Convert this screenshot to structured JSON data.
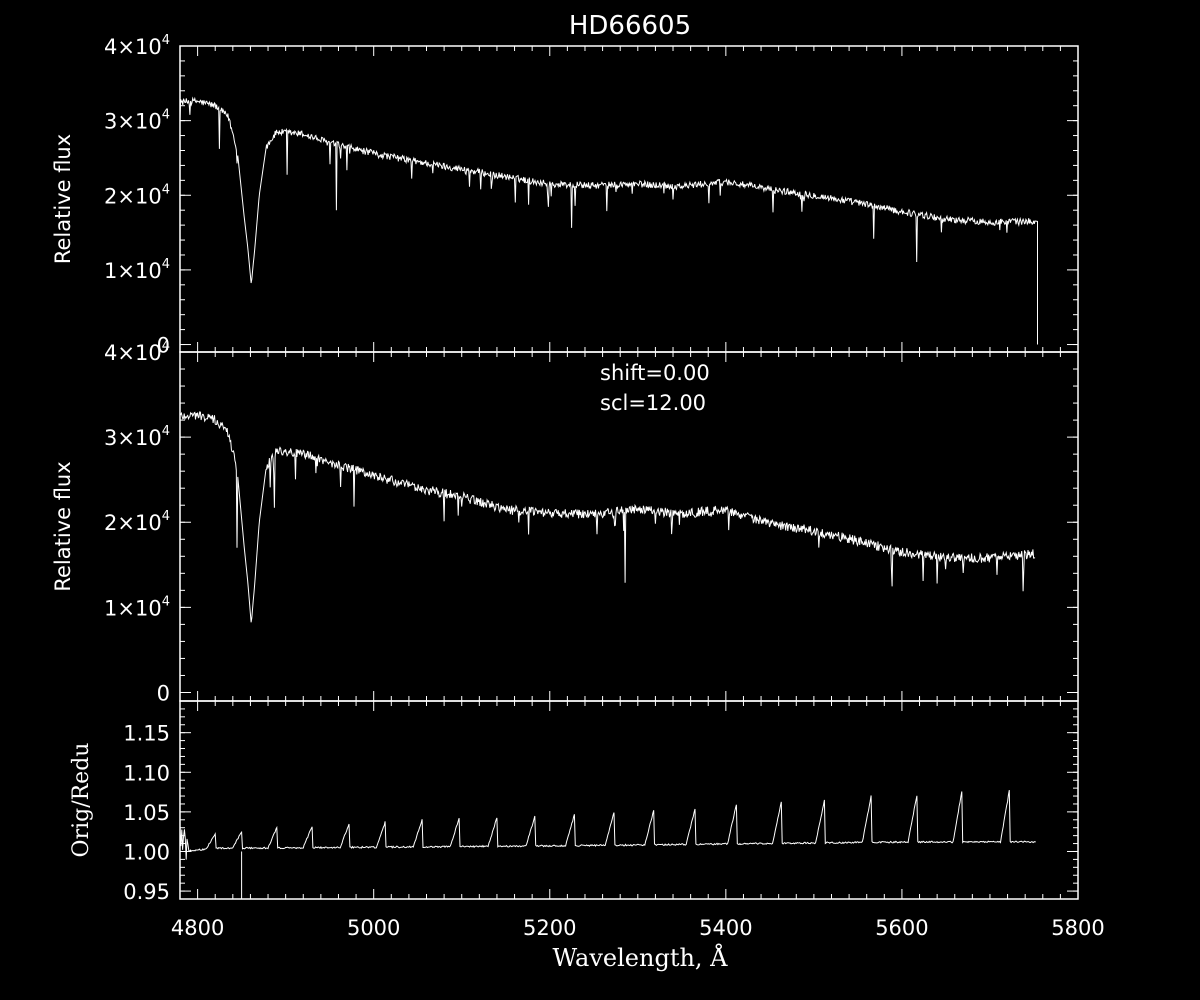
{
  "title": "HD66605",
  "colors": {
    "background": "#000000",
    "foreground": "#ffffff"
  },
  "chart_data": [
    {
      "type": "line",
      "panel": "top",
      "ylabel": "Relative flux",
      "xlim": [
        4780,
        5800
      ],
      "ylim": [
        -1000,
        40000
      ],
      "yticks": [
        {
          "value": 0,
          "mantissa": "0",
          "exp": ""
        },
        {
          "value": 10000,
          "mantissa": "1×10",
          "exp": "4"
        },
        {
          "value": 20000,
          "mantissa": "2×10",
          "exp": "4"
        },
        {
          "value": 30000,
          "mantissa": "3×10",
          "exp": "4"
        },
        {
          "value": 40000,
          "mantissa": "4×10",
          "exp": "4"
        }
      ],
      "series": [
        {
          "points": [
            [
              4780,
              32500
            ],
            [
              4800,
              32600
            ],
            [
              4820,
              32000
            ],
            [
              4835,
              30500
            ],
            [
              4845,
              26000
            ],
            [
              4853,
              17000
            ],
            [
              4857,
              13000
            ],
            [
              4861,
              8000
            ],
            [
              4865,
              13000
            ],
            [
              4870,
              20000
            ],
            [
              4878,
              26500
            ],
            [
              4890,
              28500
            ],
            [
              4920,
              28200
            ],
            [
              4950,
              27000
            ],
            [
              5000,
              25600
            ],
            [
              5050,
              24500
            ],
            [
              5100,
              23500
            ],
            [
              5150,
              22500
            ],
            [
              5200,
              21500
            ],
            [
              5250,
              21300
            ],
            [
              5300,
              21500
            ],
            [
              5350,
              21200
            ],
            [
              5400,
              21800
            ],
            [
              5450,
              20800
            ],
            [
              5500,
              20000
            ],
            [
              5550,
              19000
            ],
            [
              5600,
              17800
            ],
            [
              5650,
              16800
            ],
            [
              5700,
              16400
            ],
            [
              5752,
              16500
            ],
            [
              5754,
              0
            ]
          ],
          "noise": 900,
          "absorption_depth": 3500
        }
      ]
    },
    {
      "type": "line",
      "panel": "middle",
      "ylabel": "Relative flux",
      "annotations": [
        "shift=0.00",
        "scl=12.00"
      ],
      "xlim": [
        4780,
        5800
      ],
      "ylim": [
        -1000,
        40000
      ],
      "yticks": [
        {
          "value": 0,
          "mantissa": "0",
          "exp": ""
        },
        {
          "value": 10000,
          "mantissa": "1×10",
          "exp": "4"
        },
        {
          "value": 20000,
          "mantissa": "2×10",
          "exp": "4"
        },
        {
          "value": 30000,
          "mantissa": "3×10",
          "exp": "4"
        },
        {
          "value": 40000,
          "mantissa": "4×10",
          "exp": "4"
        }
      ],
      "series": [
        {
          "points": [
            [
              4780,
              32500
            ],
            [
              4800,
              32600
            ],
            [
              4820,
              32000
            ],
            [
              4835,
              30500
            ],
            [
              4845,
              26000
            ],
            [
              4853,
              17000
            ],
            [
              4857,
              13000
            ],
            [
              4861,
              8000
            ],
            [
              4865,
              13000
            ],
            [
              4870,
              20000
            ],
            [
              4878,
              26500
            ],
            [
              4890,
              28500
            ],
            [
              4920,
              28000
            ],
            [
              4950,
              27000
            ],
            [
              5000,
              25500
            ],
            [
              5050,
              24000
            ],
            [
              5100,
              23000
            ],
            [
              5150,
              21500
            ],
            [
              5200,
              21000
            ],
            [
              5250,
              21000
            ],
            [
              5300,
              21500
            ],
            [
              5350,
              21000
            ],
            [
              5400,
              21500
            ],
            [
              5450,
              19800
            ],
            [
              5500,
              19000
            ],
            [
              5550,
              17800
            ],
            [
              5600,
              16500
            ],
            [
              5650,
              15800
            ],
            [
              5700,
              15800
            ],
            [
              5752,
              16300
            ]
          ],
          "noise": 1100,
          "absorption_depth": 4000
        }
      ]
    },
    {
      "type": "line",
      "panel": "bottom",
      "ylabel": "Orig/Redu",
      "xlabel": "Wavelength, Å",
      "xlim": [
        4780,
        5800
      ],
      "ylim": [
        0.94,
        1.19
      ],
      "xticks": [
        "4800",
        "5000",
        "5200",
        "5400",
        "5600",
        "5800"
      ],
      "yticks": [
        "0.95",
        "1.00",
        "1.05",
        "1.10",
        "1.15"
      ],
      "series": [
        {
          "baseline": [
            [
              4780,
              1.0
            ],
            [
              4820,
              1.004
            ],
            [
              5200,
              1.007
            ],
            [
              5600,
              1.012
            ],
            [
              5752,
              1.012
            ]
          ],
          "spikes": [
            [
              4820,
              1.022
            ],
            [
              4850,
              1.025
            ],
            [
              4890,
              1.03
            ],
            [
              4930,
              1.032
            ],
            [
              4972,
              1.035
            ],
            [
              5013,
              1.037
            ],
            [
              5055,
              1.04
            ],
            [
              5097,
              1.042
            ],
            [
              5140,
              1.043
            ],
            [
              5183,
              1.044
            ],
            [
              5228,
              1.047
            ],
            [
              5273,
              1.05
            ],
            [
              5318,
              1.052
            ],
            [
              5365,
              1.054
            ],
            [
              5412,
              1.06
            ],
            [
              5463,
              1.062
            ],
            [
              5512,
              1.065
            ],
            [
              5565,
              1.07
            ],
            [
              5617,
              1.071
            ],
            [
              5668,
              1.075
            ],
            [
              5722,
              1.077
            ]
          ],
          "spike_width": 10
        }
      ]
    }
  ]
}
